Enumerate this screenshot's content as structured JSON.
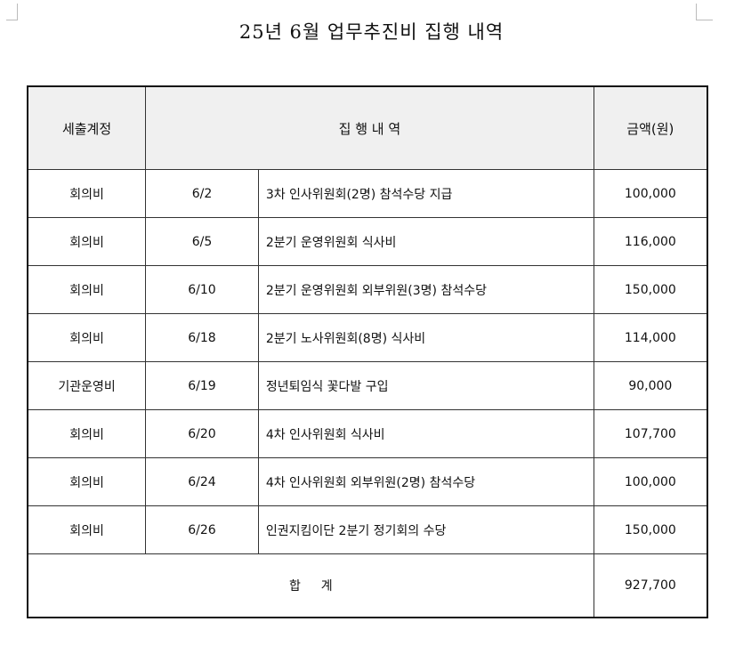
{
  "title": "25년 6월 업무추진비 집행 내역",
  "headers": {
    "account": "세출계정",
    "details": "집 행 내 역",
    "amount": "금액(원)"
  },
  "rows": [
    {
      "account": "회의비",
      "date": "6/2",
      "description": "3차 인사위원회(2명) 참석수당 지급",
      "amount": "100,000"
    },
    {
      "account": "회의비",
      "date": "6/5",
      "description": "2분기 운영위원회 식사비",
      "amount": "116,000"
    },
    {
      "account": "회의비",
      "date": "6/10",
      "description": "2분기 운영위원회 외부위원(3명) 참석수당",
      "amount": "150,000"
    },
    {
      "account": "회의비",
      "date": "6/18",
      "description": "2분기 노사위원회(8명) 식사비",
      "amount": "114,000"
    },
    {
      "account": "기관운영비",
      "date": "6/19",
      "description": "정년퇴임식 꽃다발 구입",
      "amount": "90,000"
    },
    {
      "account": "회의비",
      "date": "6/20",
      "description": "4차 인사위원회 식사비",
      "amount": "107,700"
    },
    {
      "account": "회의비",
      "date": "6/24",
      "description": "4차 인사위원회 외부위원(2명) 참석수당",
      "amount": "100,000"
    },
    {
      "account": "회의비",
      "date": "6/26",
      "description": "인권지킴이단 2분기 정기회의 수당",
      "amount": "150,000"
    }
  ],
  "total": {
    "label": "합 　 계",
    "amount": "927,700"
  }
}
